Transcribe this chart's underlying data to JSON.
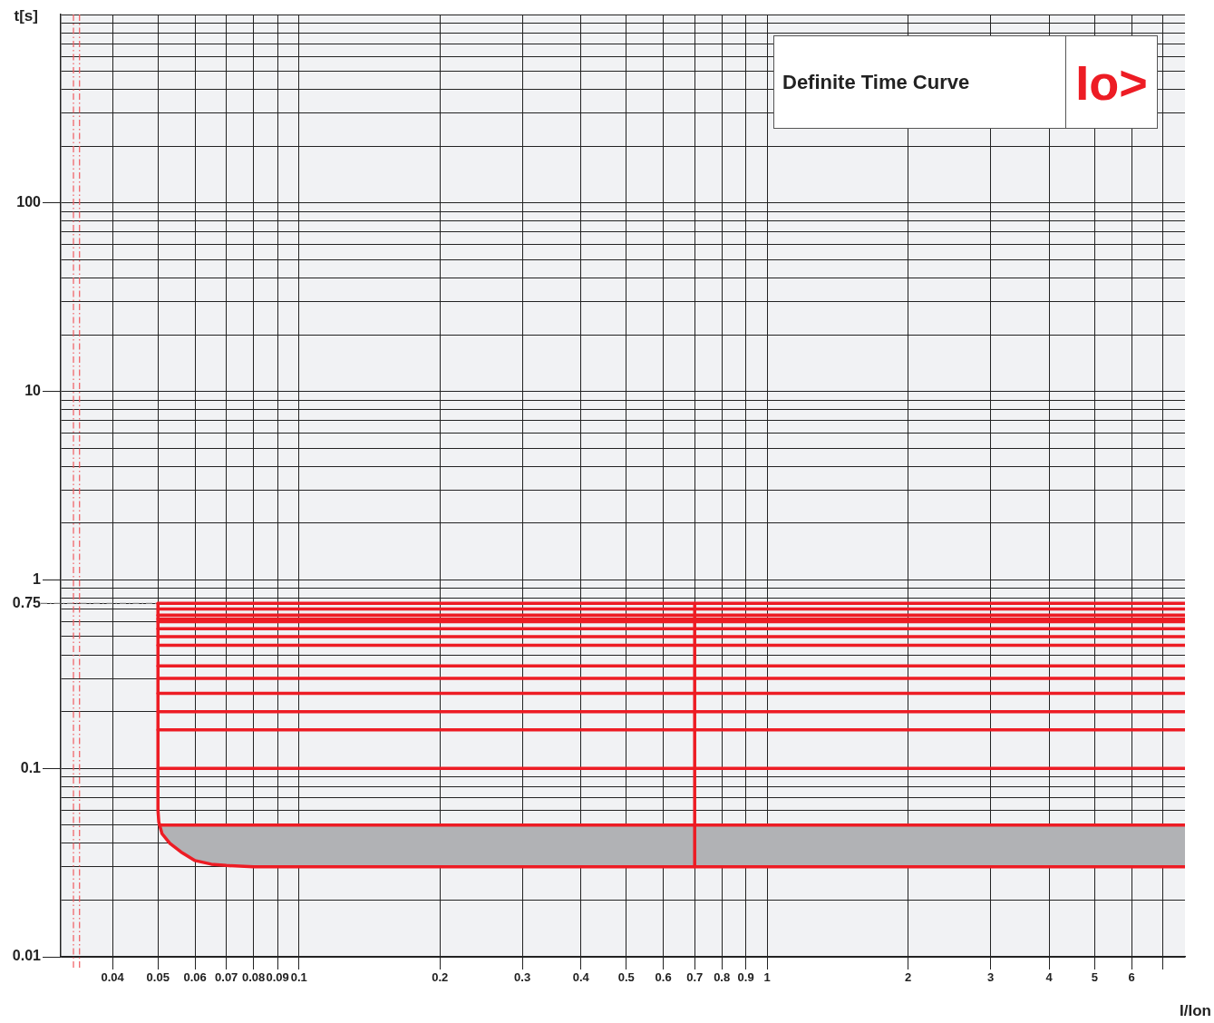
{
  "chart_data": {
    "type": "line",
    "title": "Definite Time Curve",
    "subtitle": "Io>",
    "xlabel": "I/Ion",
    "ylabel": "t[s]",
    "log": "xy",
    "grid": true,
    "legend": false,
    "marker": "none",
    "line_style": "solid",
    "xlim": [
      0.031,
      7.8
    ],
    "ylim": [
      0.01,
      1000
    ],
    "xticks": [
      0.04,
      0.05,
      0.06,
      0.07,
      0.08,
      0.09,
      0.1,
      0.2,
      0.3,
      0.4,
      0.5,
      0.6,
      0.7,
      0.8,
      0.9,
      1,
      2,
      3,
      4,
      5,
      6,
      {
        "value": 7,
        "label": null
      }
    ],
    "yticks": [
      0.01,
      {
        "value": 0.02,
        "label": null
      },
      {
        "value": 0.03,
        "label": null
      },
      {
        "value": 0.04,
        "label": null
      },
      {
        "value": 0.05,
        "label": null
      },
      {
        "value": 0.06,
        "label": null
      },
      {
        "value": 0.07,
        "label": null
      },
      {
        "value": 0.08,
        "label": null
      },
      {
        "value": 0.09,
        "label": null
      },
      0.1,
      {
        "value": 0.2,
        "label": null
      },
      {
        "value": 0.3,
        "label": null
      },
      {
        "value": 0.4,
        "label": null
      },
      {
        "value": 0.5,
        "label": null
      },
      {
        "value": 0.6,
        "label": null
      },
      {
        "value": 0.7,
        "label": null
      },
      0.75,
      {
        "value": 0.8,
        "label": null
      },
      {
        "value": 0.9,
        "label": null
      },
      1,
      {
        "value": 2,
        "label": null
      },
      {
        "value": 3,
        "label": null
      },
      {
        "value": 4,
        "label": null
      },
      {
        "value": 5,
        "label": null
      },
      {
        "value": 6,
        "label": null
      },
      {
        "value": 7,
        "label": null
      },
      {
        "value": 8,
        "label": null
      },
      {
        "value": 9,
        "label": null
      },
      10,
      {
        "value": 20,
        "label": null
      },
      {
        "value": 30,
        "label": null
      },
      {
        "value": 40,
        "label": null
      },
      {
        "value": 50,
        "label": null
      },
      {
        "value": 60,
        "label": null
      },
      {
        "value": 70,
        "label": null
      },
      {
        "value": 80,
        "label": null
      },
      {
        "value": 90,
        "label": null
      },
      100,
      {
        "value": 200,
        "label": null
      },
      {
        "value": 300,
        "label": null
      },
      {
        "value": 400,
        "label": null
      },
      {
        "value": 500,
        "label": null
      },
      {
        "value": 600,
        "label": null
      },
      {
        "value": 700,
        "label": null
      },
      {
        "value": 800,
        "label": null
      },
      {
        "value": 900,
        "label": null
      },
      {
        "value": 1000,
        "label": null
      }
    ],
    "ref_lines": [
      {
        "axis": "y",
        "value": 0.75,
        "color": "#808080",
        "line_style": "dashed"
      },
      {
        "axis": "x",
        "value": 0.033,
        "color": "#f05a5f",
        "line_style": "dashed"
      },
      {
        "axis": "x",
        "value": 0.034,
        "color": "#f05a5f",
        "line_style": "dashed"
      }
    ],
    "series": [
      {
        "color": "#ed1c24",
        "x": [
          0.05,
          0.05,
          0.0502,
          0.0504,
          0.051,
          0.053,
          0.056,
          0.06,
          0.065,
          0.07,
          0.08,
          7.8
        ],
        "values": [
          0.75,
          0.06,
          0.052,
          0.05,
          0.045,
          0.04,
          0.036,
          0.0324,
          0.031,
          0.0305,
          0.03,
          0.03
        ],
        "lower": [
          null,
          null,
          null,
          0.05,
          0.045,
          0.04,
          0.036,
          0.0324,
          0.031,
          0.0305,
          0.03,
          0.03
        ],
        "upper": [
          null,
          null,
          null,
          0.05,
          0.05,
          0.05,
          0.05,
          0.05,
          0.05,
          0.05,
          0.05,
          0.05
        ]
      },
      {
        "color": "#ed1c24",
        "x": [
          0.7,
          0.7
        ],
        "values": [
          0.03,
          0.75
        ]
      },
      {
        "color": "#ed1c24",
        "x": [
          0.05,
          7.8
        ],
        "values": [
          0.75,
          0.75
        ]
      },
      {
        "color": "#ed1c24",
        "x": [
          0.05,
          7.8
        ],
        "values": [
          0.7,
          0.7
        ]
      },
      {
        "color": "#ed1c24",
        "x": [
          0.05,
          7.8
        ],
        "values": [
          0.65,
          0.65
        ]
      },
      {
        "color": "#ed1c24",
        "x": [
          0.05,
          7.8
        ],
        "values": [
          0.62,
          0.62
        ]
      },
      {
        "color": "#ed1c24",
        "x": [
          0.05,
          7.8
        ],
        "values": [
          0.6,
          0.6
        ]
      },
      {
        "color": "#ed1c24",
        "x": [
          0.05,
          7.8
        ],
        "values": [
          0.55,
          0.55
        ]
      },
      {
        "color": "#ed1c24",
        "x": [
          0.05,
          7.8
        ],
        "values": [
          0.5,
          0.5
        ]
      },
      {
        "color": "#ed1c24",
        "x": [
          0.05,
          7.8
        ],
        "values": [
          0.45,
          0.45
        ]
      },
      {
        "color": "#ed1c24",
        "x": [
          0.05,
          7.8
        ],
        "values": [
          0.35,
          0.35
        ]
      },
      {
        "color": "#ed1c24",
        "x": [
          0.05,
          7.8
        ],
        "values": [
          0.3,
          0.3
        ]
      },
      {
        "color": "#ed1c24",
        "x": [
          0.05,
          7.8
        ],
        "values": [
          0.25,
          0.25
        ]
      },
      {
        "color": "#ed1c24",
        "x": [
          0.05,
          7.8
        ],
        "values": [
          0.2,
          0.2
        ]
      },
      {
        "color": "#ed1c24",
        "x": [
          0.05,
          7.8
        ],
        "values": [
          0.16,
          0.16
        ]
      },
      {
        "color": "#ed1c24",
        "x": [
          0.05,
          7.8
        ],
        "values": [
          0.1,
          0.1
        ]
      },
      {
        "color": "#ed1c24",
        "x": [
          0.0504,
          7.8
        ],
        "values": [
          0.05,
          0.05
        ]
      }
    ]
  }
}
